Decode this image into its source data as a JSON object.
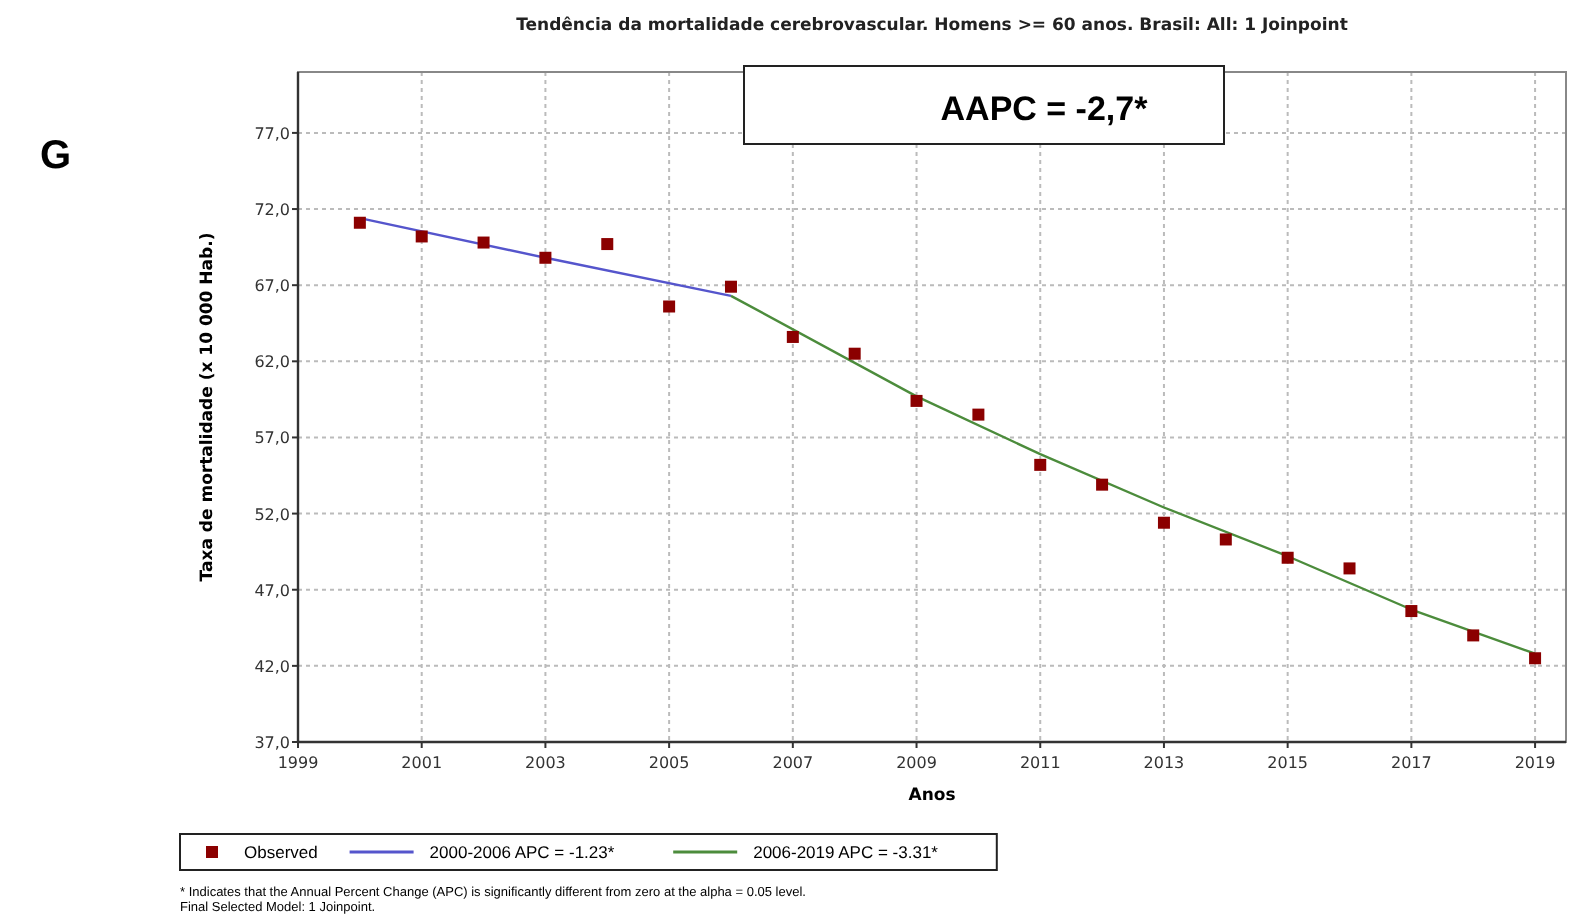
{
  "chart_data": {
    "type": "scatter",
    "title": "Tendência da mortalidade cerebrovascular. Homens >= 60 anos. Brasil: All: 1 Joinpoint",
    "xlabel": "Anos",
    "ylabel": "Taxa de mortalidade (x 10 000 Hab.)",
    "annotations": [
      "G",
      "AAPC = -2,7*",
      "* Indicates that the Annual Percent Change (APC) is significantly different from zero at the alpha = 0.05 level.",
      "Final Selected Model: 1 Joinpoint."
    ],
    "xlim": [
      1999,
      2019.5
    ],
    "xticks": [
      1999,
      2001,
      2003,
      2005,
      2007,
      2009,
      2011,
      2013,
      2015,
      2017,
      2019
    ],
    "ylim": [
      37,
      81
    ],
    "yticks": [
      {
        "value": 37,
        "label": "37,0"
      },
      {
        "value": 42,
        "label": "42,0"
      },
      {
        "value": 47,
        "label": "47,0"
      },
      {
        "value": 52,
        "label": "52,0"
      },
      {
        "value": 57,
        "label": "57,0"
      },
      {
        "value": 62,
        "label": "62,0"
      },
      {
        "value": 67,
        "label": "67,0"
      },
      {
        "value": 72,
        "label": "72,0"
      },
      {
        "value": 77,
        "label": "77,0"
      }
    ],
    "grid": true,
    "legend": "bottom",
    "series": [
      {
        "name": "Observed",
        "marker": "square",
        "color": "#8b0000",
        "x": [
          2000,
          2001,
          2002,
          2003,
          2004,
          2005,
          2006,
          2007,
          2008,
          2009,
          2010,
          2011,
          2012,
          2013,
          2014,
          2015,
          2016,
          2017,
          2018,
          2019
        ],
        "values": [
          71.1,
          70.2,
          69.8,
          68.8,
          69.7,
          65.6,
          66.9,
          63.6,
          62.5,
          59.4,
          58.5,
          55.2,
          53.9,
          51.4,
          50.3,
          49.1,
          48.4,
          45.6,
          44.0,
          42.5
        ]
      },
      {
        "name": "2000-2006 APC  = -1.23*",
        "type": "line",
        "color": "#5555cc",
        "x": [
          2000,
          2003,
          2006
        ],
        "values": [
          71.4,
          68.8,
          66.3
        ]
      },
      {
        "name": "2006-2019 APC  = -3.31*",
        "type": "line",
        "color": "#4c8c3c",
        "x": [
          2006,
          2009,
          2011,
          2013,
          2015,
          2017,
          2019
        ],
        "values": [
          66.3,
          59.7,
          55.9,
          52.4,
          49.2,
          45.7,
          42.8
        ]
      }
    ]
  }
}
